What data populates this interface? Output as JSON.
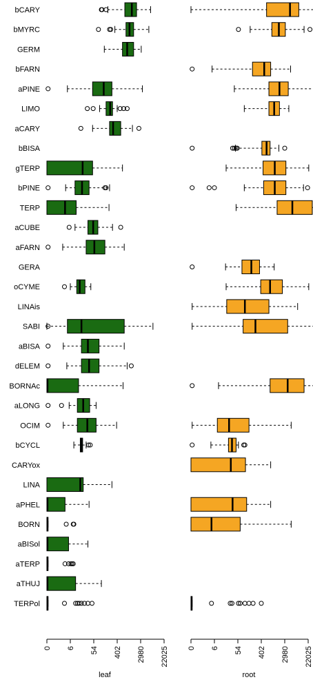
{
  "chart_data": [
    {
      "type": "box",
      "xlabel": "leaf",
      "scale": "log",
      "x_tick_labels": [
        "0",
        "6",
        "54",
        "402",
        "2980",
        "22025"
      ],
      "colors": {
        "box": "#1a6b12",
        "median": "#000000"
      },
      "categories": [
        "bCARY",
        "bMYRC",
        "GERM",
        "bFARN",
        "aPINE",
        "LIMO",
        "aCARY",
        "bBISA",
        "gTERP",
        "bPINE",
        "TERP",
        "aCUBE",
        "aFARN",
        "GERA",
        "oCYME",
        "LINAis",
        "SABI",
        "aBISA",
        "dELEM",
        "BORNAc",
        "aLONG",
        "OCIM",
        "bCYCL",
        "CARYox",
        "LINA",
        "aPHEL",
        "BORN",
        "aBISol",
        "aTERP",
        "aTHUJ",
        "TERPol"
      ],
      "series": [
        {
          "category": "bCARY",
          "whisker_low": 5.2,
          "q1": 6.65,
          "median": 7.25,
          "q3": 7.65,
          "whisker_high": 8.85,
          "outliers": [
            4.65,
            4.7,
            5.05
          ]
        },
        {
          "category": "bMYRC",
          "whisker_low": 5.8,
          "q1": 6.75,
          "median": 7.05,
          "q3": 7.4,
          "whisker_high": 8.7,
          "outliers": [
            4.4,
            5.35,
            5.45
          ]
        },
        {
          "category": "GERM",
          "whisker_low": 4.9,
          "q1": 6.45,
          "median": 6.85,
          "q3": 7.4,
          "whisker_high": 8.05,
          "outliers": []
        },
        {
          "category": "bFARN",
          "whisker_low": null,
          "q1": null,
          "median": null,
          "q3": null,
          "whisker_high": null,
          "outliers": []
        },
        {
          "category": "aPINE",
          "whisker_low": 1.75,
          "q1": 3.9,
          "median": 4.85,
          "q3": 5.55,
          "whisker_high": 8.15,
          "outliers": [
            0.1
          ]
        },
        {
          "category": "LIMO",
          "whisker_low": 4.5,
          "q1": 5.05,
          "median": 5.4,
          "q3": 5.6,
          "whisker_high": 6.0,
          "outliers": [
            3.45,
            3.95,
            6.25,
            6.55,
            6.85
          ]
        },
        {
          "category": "aCARY",
          "whisker_low": 3.9,
          "q1": 5.35,
          "median": 5.65,
          "q3": 6.3,
          "whisker_high": 7.3,
          "outliers": [
            2.9,
            7.85
          ]
        },
        {
          "category": "bBISA",
          "whisker_low": null,
          "q1": null,
          "median": null,
          "q3": null,
          "whisker_high": null,
          "outliers": []
        },
        {
          "category": "gTERP",
          "whisker_low": 0,
          "q1": 0,
          "median": 3.05,
          "q3": 3.9,
          "whisker_high": 6.45,
          "outliers": []
        },
        {
          "category": "bPINE",
          "whisker_low": 1.6,
          "q1": 2.4,
          "median": 3.0,
          "q3": 3.6,
          "whisker_high": 5.35,
          "outliers": [
            0.1,
            4.95,
            5.05
          ]
        },
        {
          "category": "TERP",
          "whisker_low": 0,
          "q1": 0,
          "median": 1.55,
          "q3": 2.5,
          "whisker_high": 5.3,
          "outliers": []
        },
        {
          "category": "aCUBE",
          "whisker_low": 2.4,
          "q1": 3.5,
          "median": 3.95,
          "q3": 4.35,
          "whisker_high": 5.6,
          "outliers": [
            1.9,
            6.3
          ]
        },
        {
          "category": "aFARN",
          "whisker_low": 1.35,
          "q1": 3.35,
          "median": 4.05,
          "q3": 4.95,
          "whisker_high": 6.6,
          "outliers": [
            0.1
          ]
        },
        {
          "category": "GERA",
          "whisker_low": null,
          "q1": null,
          "median": null,
          "q3": null,
          "whisker_high": null,
          "outliers": []
        },
        {
          "category": "oCYME",
          "whisker_low": 2.0,
          "q1": 2.55,
          "median": 2.8,
          "q3": 3.25,
          "whisker_high": 3.75,
          "outliers": [
            1.5
          ]
        },
        {
          "category": "LINAis",
          "whisker_low": null,
          "q1": null,
          "median": null,
          "q3": null,
          "whisker_high": null,
          "outliers": []
        },
        {
          "category": "SABI",
          "whisker_low": 0,
          "q1": 1.75,
          "median": 2.95,
          "q3": 6.6,
          "whisker_high": 9.05,
          "outliers": [
            0.1
          ]
        },
        {
          "category": "aBISA",
          "whisker_low": 1.4,
          "q1": 2.95,
          "median": 3.5,
          "q3": 4.45,
          "whisker_high": 6.6,
          "outliers": [
            0.1
          ]
        },
        {
          "category": "dELEM",
          "whisker_low": 1.7,
          "q1": 2.95,
          "median": 3.6,
          "q3": 4.45,
          "whisker_high": 6.85,
          "outliers": [
            0.1,
            7.2
          ]
        },
        {
          "category": "BORNAc",
          "whisker_low": 0,
          "q1": 0,
          "median": 0.05,
          "q3": 2.7,
          "whisker_high": 6.5,
          "outliers": []
        },
        {
          "category": "aLONG",
          "whisker_low": 1.9,
          "q1": 2.6,
          "median": 3.1,
          "q3": 3.65,
          "whisker_high": 4.2,
          "outliers": [
            0.1,
            1.25
          ]
        },
        {
          "category": "OCIM",
          "whisker_low": 1.4,
          "q1": 2.6,
          "median": 3.45,
          "q3": 4.2,
          "whisker_high": 5.95,
          "outliers": [
            0.1
          ]
        },
        {
          "category": "bCYCL",
          "whisker_low": 2.3,
          "q1": 2.85,
          "median": 2.95,
          "q3": 3.05,
          "whisker_high": 3.35,
          "outliers": [
            3.55,
            3.7
          ]
        },
        {
          "category": "CARYox",
          "whisker_low": null,
          "q1": null,
          "median": null,
          "q3": null,
          "whisker_high": null,
          "outliers": []
        },
        {
          "category": "LINA",
          "whisker_low": 0,
          "q1": 0,
          "median": 2.85,
          "q3": 3.1,
          "whisker_high": 5.55,
          "outliers": []
        },
        {
          "category": "aPHEL",
          "whisker_low": 0,
          "q1": 0,
          "median": 0.05,
          "q3": 1.55,
          "whisker_high": 3.6,
          "outliers": []
        },
        {
          "category": "BORN",
          "whisker_low": 0,
          "q1": 0,
          "median": 0.05,
          "q3": 0.1,
          "whisker_high": 0.1,
          "outliers": [
            1.65,
            2.25,
            2.3
          ]
        },
        {
          "category": "aBISol",
          "whisker_low": 0,
          "q1": 0,
          "median": 0.05,
          "q3": 1.85,
          "whisker_high": 3.5,
          "outliers": []
        },
        {
          "category": "aTERP",
          "whisker_low": 0,
          "q1": 0,
          "median": 0.05,
          "q3": 0.1,
          "whisker_high": 0.1,
          "outliers": [
            1.55,
            1.85,
            2.05,
            2.15,
            2.25
          ]
        },
        {
          "category": "aTHUJ",
          "whisker_low": 0,
          "q1": 0,
          "median": 0.05,
          "q3": 2.45,
          "whisker_high": 4.65,
          "outliers": []
        },
        {
          "category": "TERPol",
          "whisker_low": 0,
          "q1": 0,
          "median": 0.05,
          "q3": 0.1,
          "whisker_high": 0.1,
          "outliers": [
            1.5,
            2.45,
            2.6,
            2.75,
            2.95,
            3.2,
            3.5,
            3.85
          ]
        }
      ]
    },
    {
      "type": "box",
      "xlabel": "root",
      "scale": "log",
      "x_tick_labels": [
        "0",
        "6",
        "54",
        "402",
        "2980",
        "22025"
      ],
      "colors": {
        "box": "#f5a623",
        "median": "#000000"
      },
      "categories": [
        "bCARY",
        "bMYRC",
        "GERM",
        "bFARN",
        "aPINE",
        "LIMO",
        "aCARY",
        "bBISA",
        "gTERP",
        "bPINE",
        "TERP",
        "aCUBE",
        "aFARN",
        "GERA",
        "oCYME",
        "LINAis",
        "SABI",
        "aBISA",
        "dELEM",
        "BORNAc",
        "aLONG",
        "OCIM",
        "bCYCL",
        "CARYox",
        "LINA",
        "aPHEL",
        "BORN",
        "aBISol",
        "aTERP",
        "aTHUJ",
        "TERPol"
      ],
      "series": [
        {
          "category": "bCARY",
          "whisker_low": 0,
          "q1": 6.45,
          "median": 8.45,
          "q3": 9.2,
          "whisker_high": 10.6,
          "outliers": []
        },
        {
          "category": "bMYRC",
          "whisker_low": 5.05,
          "q1": 6.9,
          "median": 7.5,
          "q3": 8.05,
          "whisker_high": 9.65,
          "outliers": [
            4.05,
            10.15
          ]
        },
        {
          "category": "GERM",
          "whisker_low": null,
          "q1": null,
          "median": null,
          "q3": null,
          "whisker_high": null,
          "outliers": []
        },
        {
          "category": "bFARN",
          "whisker_low": 1.8,
          "q1": 5.25,
          "median": 6.25,
          "q3": 6.8,
          "whisker_high": 8.5,
          "outliers": [
            0.1
          ]
        },
        {
          "category": "aPINE",
          "whisker_low": 3.7,
          "q1": 6.65,
          "median": 7.55,
          "q3": 8.3,
          "whisker_high": 10.45,
          "outliers": []
        },
        {
          "category": "LIMO",
          "whisker_low": 4.55,
          "q1": 6.65,
          "median": 7.1,
          "q3": 7.55,
          "whisker_high": 8.35,
          "outliers": []
        },
        {
          "category": "aCARY",
          "whisker_low": null,
          "q1": null,
          "median": null,
          "q3": null,
          "whisker_high": null,
          "outliers": []
        },
        {
          "category": "bBISA",
          "whisker_low": 3.8,
          "q1": 6.05,
          "median": 6.45,
          "q3": 6.75,
          "whisker_high": 7.5,
          "outliers": [
            0.1,
            3.55,
            3.7,
            3.85,
            3.95,
            8.0
          ]
        },
        {
          "category": "gTERP",
          "whisker_low": 3.0,
          "q1": 6.15,
          "median": 7.15,
          "q3": 8.1,
          "whisker_high": 10.05,
          "outliers": []
        },
        {
          "category": "bPINE",
          "whisker_low": 4.55,
          "q1": 6.2,
          "median": 7.15,
          "q3": 8.1,
          "whisker_high": 9.6,
          "outliers": [
            0.1,
            1.55,
            2.0,
            9.95
          ]
        },
        {
          "category": "TERP",
          "whisker_low": 3.85,
          "q1": 7.35,
          "median": 8.65,
          "q3": 10.35,
          "whisker_high": 12.15,
          "outliers": []
        },
        {
          "category": "aCUBE",
          "whisker_low": null,
          "q1": null,
          "median": null,
          "q3": null,
          "whisker_high": null,
          "outliers": []
        },
        {
          "category": "aFARN",
          "whisker_low": null,
          "q1": null,
          "median": null,
          "q3": null,
          "whisker_high": null,
          "outliers": []
        },
        {
          "category": "GERA",
          "whisker_low": 2.95,
          "q1": 4.35,
          "median": 5.15,
          "q3": 5.85,
          "whisker_high": 7.1,
          "outliers": [
            0.1
          ]
        },
        {
          "category": "oCYME",
          "whisker_low": 3.0,
          "q1": 5.95,
          "median": 6.75,
          "q3": 7.8,
          "whisker_high": 10.05,
          "outliers": []
        },
        {
          "category": "LINAis",
          "whisker_low": 0.1,
          "q1": 3.05,
          "median": 4.6,
          "q3": 6.65,
          "whisker_high": 9.1,
          "outliers": []
        },
        {
          "category": "SABI",
          "whisker_low": 0.1,
          "q1": 4.45,
          "median": 5.5,
          "q3": 8.25,
          "whisker_high": 13.35,
          "outliers": []
        },
        {
          "category": "aBISA",
          "whisker_low": null,
          "q1": null,
          "median": null,
          "q3": null,
          "whisker_high": null,
          "outliers": []
        },
        {
          "category": "dELEM",
          "whisker_low": null,
          "q1": null,
          "median": null,
          "q3": null,
          "whisker_high": null,
          "outliers": []
        },
        {
          "category": "BORNAc",
          "whisker_low": 2.35,
          "q1": 6.75,
          "median": 8.25,
          "q3": 9.65,
          "whisker_high": 12.35,
          "outliers": [
            0.1
          ]
        },
        {
          "category": "aLONG",
          "whisker_low": null,
          "q1": null,
          "median": null,
          "q3": null,
          "whisker_high": null,
          "outliers": []
        },
        {
          "category": "OCIM",
          "whisker_low": 0.1,
          "q1": 2.25,
          "median": 3.25,
          "q3": 4.95,
          "whisker_high": 8.55,
          "outliers": []
        },
        {
          "category": "bCYCL",
          "whisker_low": 1.7,
          "q1": 3.2,
          "median": 3.5,
          "q3": 3.85,
          "whisker_high": 4.05,
          "outliers": [
            0.1,
            4.5,
            4.6
          ]
        },
        {
          "category": "CARYox",
          "whisker_low": 0,
          "q1": 0,
          "median": 3.4,
          "q3": 4.65,
          "whisker_high": 6.8,
          "outliers": []
        },
        {
          "category": "LINA",
          "whisker_low": null,
          "q1": null,
          "median": null,
          "q3": null,
          "whisker_high": null,
          "outliers": []
        },
        {
          "category": "aPHEL",
          "whisker_low": 0,
          "q1": 0,
          "median": 3.55,
          "q3": 4.75,
          "whisker_high": 6.8,
          "outliers": []
        },
        {
          "category": "BORN",
          "whisker_low": 0,
          "q1": 0,
          "median": 1.75,
          "q3": 4.2,
          "whisker_high": 8.55,
          "outliers": []
        },
        {
          "category": "aBISol",
          "whisker_low": null,
          "q1": null,
          "median": null,
          "q3": null,
          "whisker_high": null,
          "outliers": []
        },
        {
          "category": "aTERP",
          "whisker_low": null,
          "q1": null,
          "median": null,
          "q3": null,
          "whisker_high": null,
          "outliers": []
        },
        {
          "category": "aTHUJ",
          "whisker_low": null,
          "q1": null,
          "median": null,
          "q3": null,
          "whisker_high": null,
          "outliers": []
        },
        {
          "category": "TERPol",
          "whisker_low": 0,
          "q1": 0,
          "median": 0.05,
          "q3": 0.1,
          "whisker_high": 0.1,
          "outliers": [
            1.75,
            3.35,
            3.5,
            4.05,
            4.2,
            4.6,
            4.95,
            5.3,
            6.0
          ]
        }
      ]
    }
  ]
}
